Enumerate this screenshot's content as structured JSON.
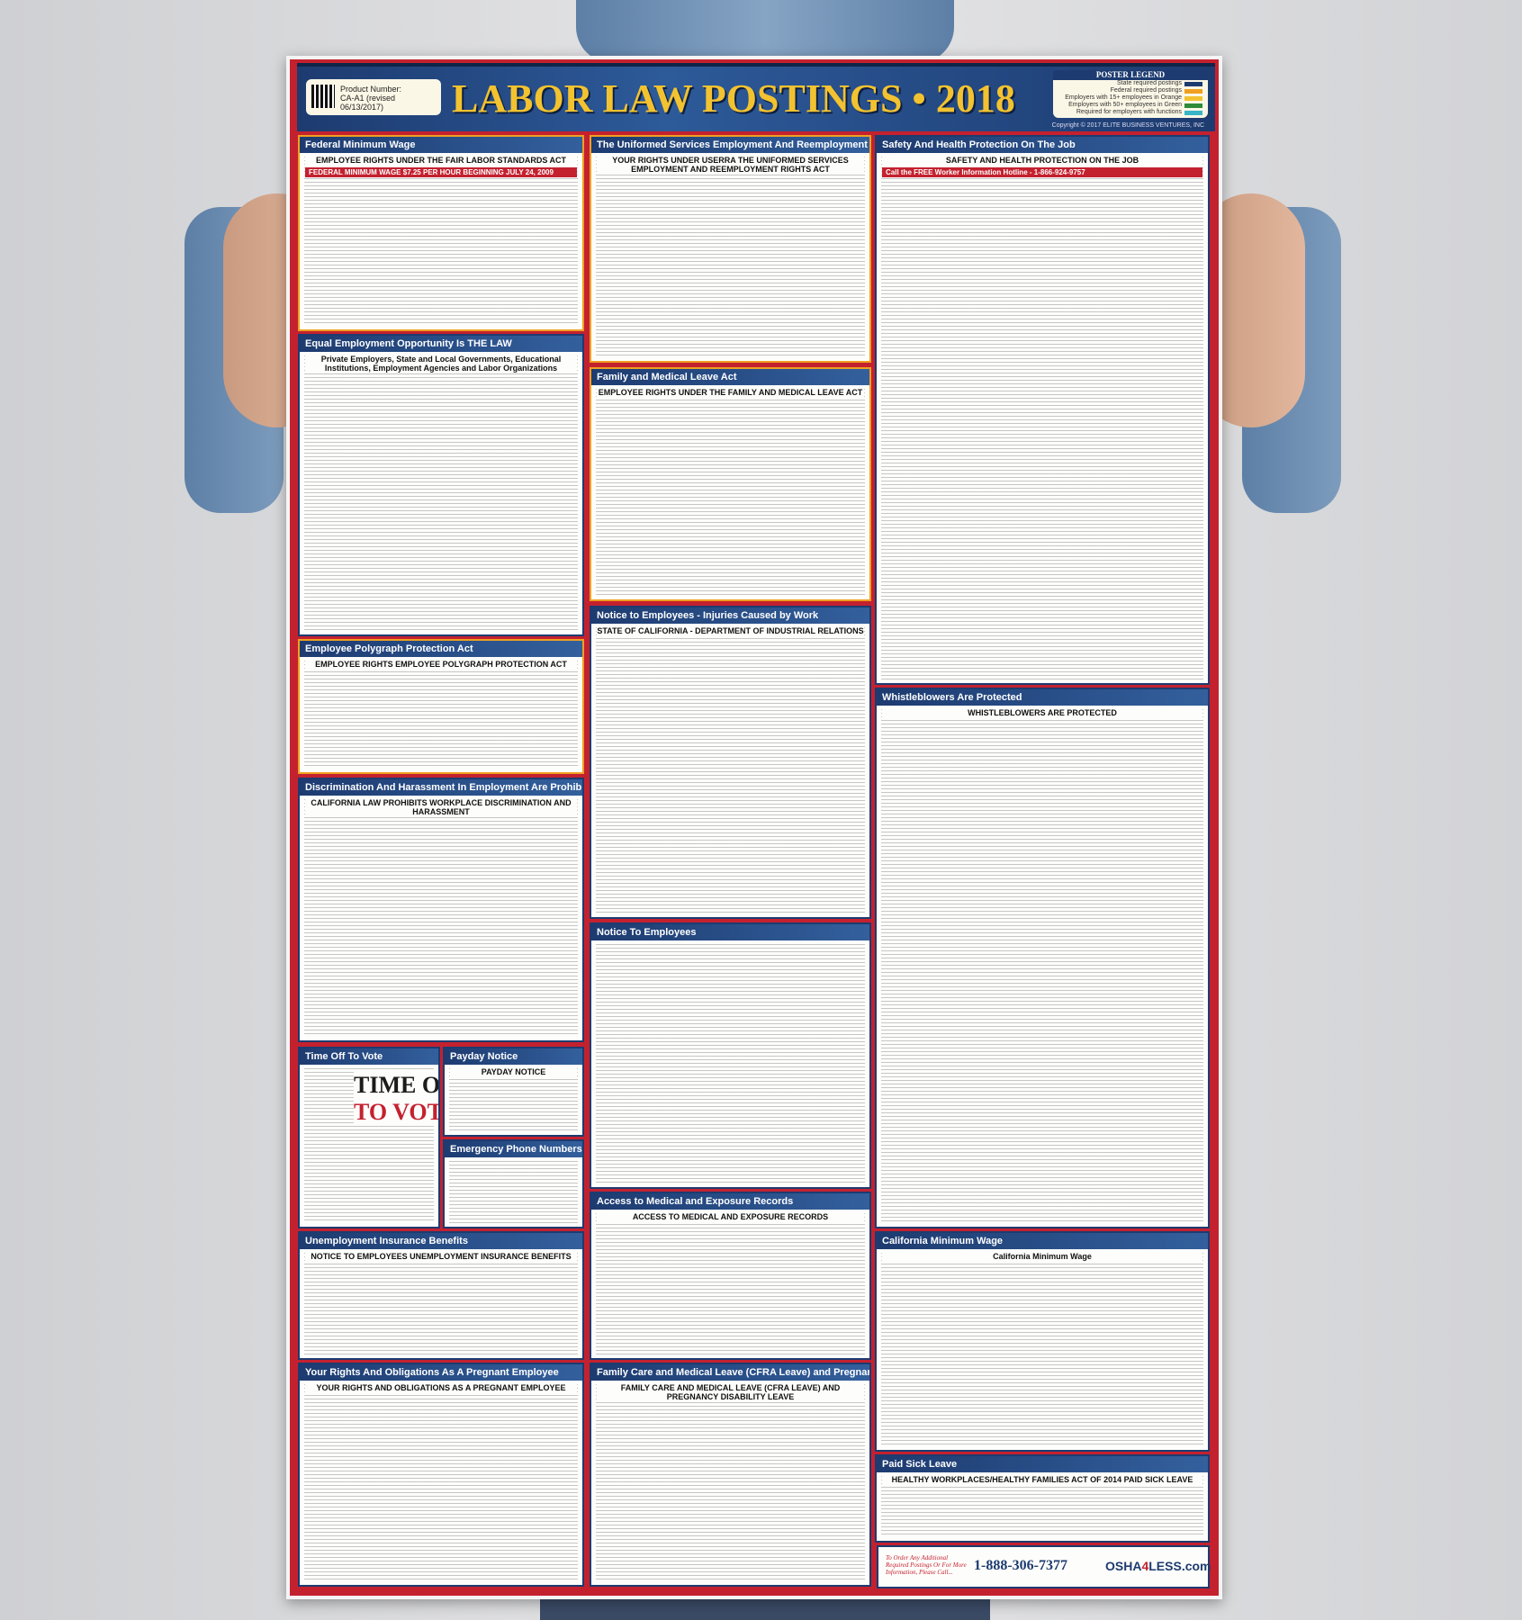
{
  "poster": {
    "product_label": "Product Number:",
    "product_number": "CA-A1 (revised 06/13/2017)",
    "title": "LABOR LAW POSTINGS • 2018",
    "legend_title": "POSTER LEGEND",
    "legend": [
      {
        "label": "State required postings",
        "color": "#1d3b70"
      },
      {
        "label": "Federal required postings",
        "color": "#f0a020"
      },
      {
        "label": "Employers with 15+ employees in Orange",
        "color": "#f2c230"
      },
      {
        "label": "Employers with 50+ employees in Green",
        "color": "#2e8b3a"
      },
      {
        "label": "Required for employers with functions",
        "color": "#38b6c8"
      }
    ],
    "copyright": "Copyright © 2017 ELITE BUSINESS VENTURES, INC"
  },
  "sections": {
    "fed_min_wage": {
      "title": "Federal Minimum Wage",
      "sub": "EMPLOYEE RIGHTS UNDER THE FAIR LABOR STANDARDS ACT",
      "bar": "FEDERAL MINIMUM WAGE $7.25 PER HOUR BEGINNING JULY 24, 2009"
    },
    "eeo": {
      "title": "Equal Employment Opportunity Is THE LAW",
      "sub": "Private Employers, State and Local Governments, Educational Institutions, Employment Agencies and Labor Organizations"
    },
    "polygraph": {
      "title": "Employee Polygraph Protection Act",
      "sub": "EMPLOYEE RIGHTS EMPLOYEE POLYGRAPH PROTECTION ACT"
    },
    "discrimination": {
      "title": "Discrimination And Harassment In Employment Are Prohibited By Law",
      "sub": "CALIFORNIA LAW PROHIBITS WORKPLACE DISCRIMINATION AND HARASSMENT"
    },
    "time_off": {
      "title": "Time Off To Vote",
      "big1": "TIME OFF",
      "big2": "TO VOTE"
    },
    "payday": {
      "title": "Payday Notice",
      "sub": "PAYDAY NOTICE"
    },
    "emergency": {
      "title": "Emergency Phone Numbers"
    },
    "unemployment": {
      "title": "Unemployment Insurance Benefits",
      "sub": "NOTICE TO EMPLOYEES UNEMPLOYMENT INSURANCE BENEFITS"
    },
    "pregnant": {
      "title": "Your Rights And Obligations As A Pregnant Employee",
      "sub": "YOUR RIGHTS AND OBLIGATIONS AS A PREGNANT EMPLOYEE"
    },
    "userra": {
      "title": "The Uniformed Services Employment And Reemployment Rights Act",
      "sub": "YOUR RIGHTS UNDER USERRA THE UNIFORMED SERVICES EMPLOYMENT AND REEMPLOYMENT RIGHTS ACT"
    },
    "fmla": {
      "title": "Family and Medical Leave Act",
      "sub": "EMPLOYEE RIGHTS UNDER THE FAMILY AND MEDICAL LEAVE ACT"
    },
    "injuries": {
      "title": "Notice to Employees - Injuries Caused by Work",
      "sub": "STATE OF CALIFORNIA - DEPARTMENT OF INDUSTRIAL RELATIONS"
    },
    "notice": {
      "title": "Notice To Employees"
    },
    "medical_records": {
      "title": "Access to Medical and Exposure Records",
      "sub": "ACCESS TO MEDICAL AND EXPOSURE RECORDS"
    },
    "cfra": {
      "title": "Family Care and Medical Leave (CFRA Leave) and Pregnancy Disability Leave",
      "sub": "FAMILY CARE AND MEDICAL LEAVE (CFRA LEAVE) AND PREGNANCY DISABILITY LEAVE"
    },
    "safety": {
      "title": "Safety And Health Protection On The Job",
      "sub": "SAFETY AND HEALTH PROTECTION ON THE JOB",
      "bar": "Call the FREE Worker Information Hotline - 1-866-924-9757"
    },
    "whistle": {
      "title": "Whistleblowers Are Protected",
      "sub": "WHISTLEBLOWERS ARE PROTECTED"
    },
    "ca_min_wage": {
      "title": "California Minimum Wage",
      "sub": "California Minimum Wage"
    },
    "paid_sick": {
      "title": "Paid Sick Leave",
      "sub": "HEALTHY WORKPLACES/HEALTHY FAMILIES ACT OF 2014 PAID SICK LEAVE"
    }
  },
  "footer": {
    "order_text": "To Order Any Additional Required Postings Or For More Information, Please Call...",
    "phone": "1-888-306-7377",
    "logo_a": "OSHA",
    "logo_b": "4",
    "logo_c": "LESS.com"
  }
}
